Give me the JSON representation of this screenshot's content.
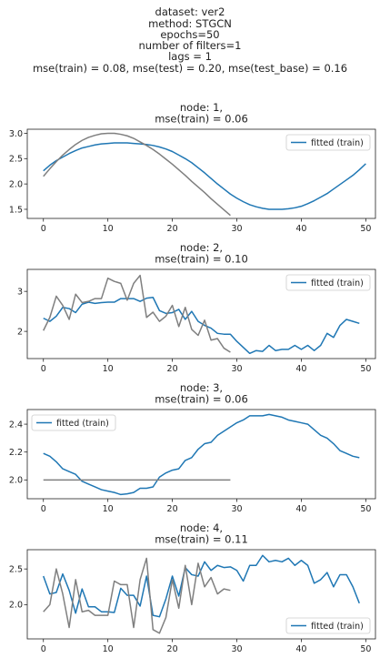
{
  "figure": {
    "title_lines": [
      "dataset: ver2",
      "method: STGCN",
      "epochs=50",
      "number of filters=1",
      "lags = 1",
      "mse(train) = 0.08, mse(test) = 0.20, mse(test_base) = 0.16"
    ]
  },
  "colors": {
    "fitted": "#1f77b4",
    "observed": "#7f7f7f"
  },
  "chart_data": [
    {
      "type": "line",
      "title": [
        "node: 1,",
        "mse(train) = 0.06"
      ],
      "xlim": [
        -2.5,
        51.5
      ],
      "ylim": [
        1.32,
        3.08
      ],
      "xticks": [
        0,
        10,
        20,
        30,
        40,
        50
      ],
      "yticks": [
        1.5,
        2.0,
        2.5,
        3.0
      ],
      "ytick_labels": [
        "1.5",
        "2.0",
        "2.5",
        "3.0"
      ],
      "legend": {
        "label": "fitted (train)",
        "loc": "upper right"
      },
      "series": [
        {
          "name": "fitted (train)",
          "role": "fitted",
          "x_start": 0,
          "values": [
            2.26,
            2.37,
            2.46,
            2.53,
            2.6,
            2.66,
            2.71,
            2.74,
            2.77,
            2.79,
            2.8,
            2.81,
            2.81,
            2.81,
            2.8,
            2.79,
            2.78,
            2.76,
            2.73,
            2.69,
            2.64,
            2.57,
            2.5,
            2.42,
            2.32,
            2.22,
            2.11,
            2.0,
            1.9,
            1.8,
            1.72,
            1.65,
            1.59,
            1.55,
            1.52,
            1.5,
            1.5,
            1.5,
            1.51,
            1.53,
            1.56,
            1.61,
            1.67,
            1.74,
            1.81,
            1.9,
            1.99,
            2.08,
            2.17,
            2.28,
            2.4
          ]
        },
        {
          "name": "",
          "role": "observed",
          "x_start": 0,
          "values": [
            2.15,
            2.3,
            2.44,
            2.57,
            2.68,
            2.78,
            2.86,
            2.92,
            2.96,
            2.99,
            3.0,
            3.0,
            2.98,
            2.95,
            2.9,
            2.83,
            2.76,
            2.68,
            2.59,
            2.49,
            2.39,
            2.28,
            2.17,
            2.05,
            1.94,
            1.83,
            1.71,
            1.6,
            1.49,
            1.38
          ]
        }
      ]
    },
    {
      "type": "line",
      "title": [
        "node: 2,",
        "mse(train) = 0.10"
      ],
      "xlim": [
        -2.5,
        51.5
      ],
      "ylim": [
        1.32,
        3.55
      ],
      "xticks": [
        0,
        10,
        20,
        30,
        40,
        50
      ],
      "yticks": [
        2,
        3
      ],
      "ytick_labels": [
        "2",
        "3"
      ],
      "legend": {
        "label": "fitted (train)",
        "loc": "upper right"
      },
      "series": [
        {
          "name": "fitted (train)",
          "role": "fitted",
          "x_start": 0,
          "values": [
            2.33,
            2.25,
            2.38,
            2.6,
            2.57,
            2.47,
            2.68,
            2.73,
            2.7,
            2.72,
            2.73,
            2.73,
            2.82,
            2.82,
            2.82,
            2.75,
            2.83,
            2.85,
            2.52,
            2.45,
            2.47,
            2.55,
            2.3,
            2.5,
            2.25,
            2.15,
            2.08,
            1.95,
            1.93,
            1.93,
            1.75,
            1.6,
            1.45,
            1.52,
            1.5,
            1.65,
            1.52,
            1.55,
            1.55,
            1.65,
            1.55,
            1.65,
            1.52,
            1.65,
            1.95,
            1.85,
            2.15,
            2.3,
            2.25,
            2.2
          ]
        },
        {
          "name": "",
          "role": "observed",
          "x_start": 0,
          "values": [
            2.02,
            2.35,
            2.88,
            2.65,
            2.3,
            2.93,
            2.72,
            2.75,
            2.82,
            2.82,
            3.33,
            3.25,
            3.2,
            2.78,
            3.2,
            3.4,
            2.35,
            2.48,
            2.25,
            2.38,
            2.65,
            2.12,
            2.6,
            2.05,
            1.9,
            2.28,
            1.78,
            1.82,
            1.58,
            1.48
          ]
        }
      ]
    },
    {
      "type": "line",
      "title": [
        "node: 3,",
        "mse(train) = 0.06"
      ],
      "xlim": [
        -2.5,
        51.5
      ],
      "ylim": [
        1.865,
        2.505
      ],
      "xticks": [
        0,
        10,
        20,
        30,
        40,
        50
      ],
      "yticks": [
        2.0,
        2.2,
        2.4
      ],
      "ytick_labels": [
        "2.0",
        "2.2",
        "2.4"
      ],
      "legend": {
        "label": "fitted (train)",
        "loc": "upper left"
      },
      "series": [
        {
          "name": "fitted (train)",
          "role": "fitted",
          "x_start": 0,
          "values": [
            2.19,
            2.17,
            2.13,
            2.08,
            2.06,
            2.04,
            1.99,
            1.97,
            1.95,
            1.93,
            1.92,
            1.91,
            1.895,
            1.9,
            1.91,
            1.94,
            1.94,
            1.95,
            2.02,
            2.05,
            2.07,
            2.08,
            2.14,
            2.16,
            2.22,
            2.26,
            2.27,
            2.32,
            2.35,
            2.38,
            2.41,
            2.43,
            2.46,
            2.46,
            2.46,
            2.47,
            2.46,
            2.45,
            2.43,
            2.42,
            2.41,
            2.4,
            2.36,
            2.32,
            2.3,
            2.26,
            2.21,
            2.19,
            2.17,
            2.16
          ]
        },
        {
          "name": "",
          "role": "observed",
          "x_start": 0,
          "values": [
            2.0,
            2.0,
            2.0,
            2.0,
            2.0,
            2.0,
            2.0,
            2.0,
            2.0,
            2.0,
            2.0,
            2.0,
            2.0,
            2.0,
            2.0,
            2.0,
            2.0,
            2.0,
            2.0,
            2.0,
            2.0,
            2.0,
            2.0,
            2.0,
            2.0,
            2.0,
            2.0,
            2.0,
            2.0,
            2.0
          ]
        }
      ]
    },
    {
      "type": "line",
      "title": [
        "node: 4,",
        "mse(train) = 0.11"
      ],
      "xlim": [
        -2.5,
        51.5
      ],
      "ylim": [
        1.52,
        2.77
      ],
      "xticks": [
        0,
        10,
        20,
        30,
        40,
        50
      ],
      "yticks": [
        2.0,
        2.5
      ],
      "ytick_labels": [
        "2.0",
        "2.5"
      ],
      "legend": {
        "label": "fitted (train)",
        "loc": "lower right"
      },
      "series": [
        {
          "name": "fitted (train)",
          "role": "fitted",
          "x_start": 0,
          "values": [
            2.4,
            2.15,
            2.17,
            2.43,
            2.2,
            1.88,
            2.22,
            1.97,
            1.97,
            1.9,
            1.9,
            1.89,
            2.23,
            2.13,
            2.13,
            1.98,
            2.4,
            1.85,
            1.83,
            2.08,
            2.4,
            2.12,
            2.52,
            2.42,
            2.4,
            2.6,
            2.48,
            2.55,
            2.52,
            2.53,
            2.48,
            2.33,
            2.55,
            2.55,
            2.69,
            2.6,
            2.62,
            2.6,
            2.65,
            2.55,
            2.62,
            2.55,
            2.3,
            2.35,
            2.45,
            2.25,
            2.42,
            2.42,
            2.25,
            2.02
          ]
        },
        {
          "name": "",
          "role": "observed",
          "x_start": 0,
          "values": [
            1.9,
            2.0,
            2.5,
            2.15,
            1.68,
            2.35,
            1.9,
            1.92,
            1.85,
            1.85,
            1.85,
            2.33,
            2.28,
            2.28,
            1.68,
            2.35,
            2.65,
            1.65,
            1.6,
            1.82,
            2.35,
            1.95,
            2.55,
            2.0,
            2.58,
            2.25,
            2.38,
            2.15,
            2.22,
            2.2
          ]
        }
      ]
    }
  ]
}
